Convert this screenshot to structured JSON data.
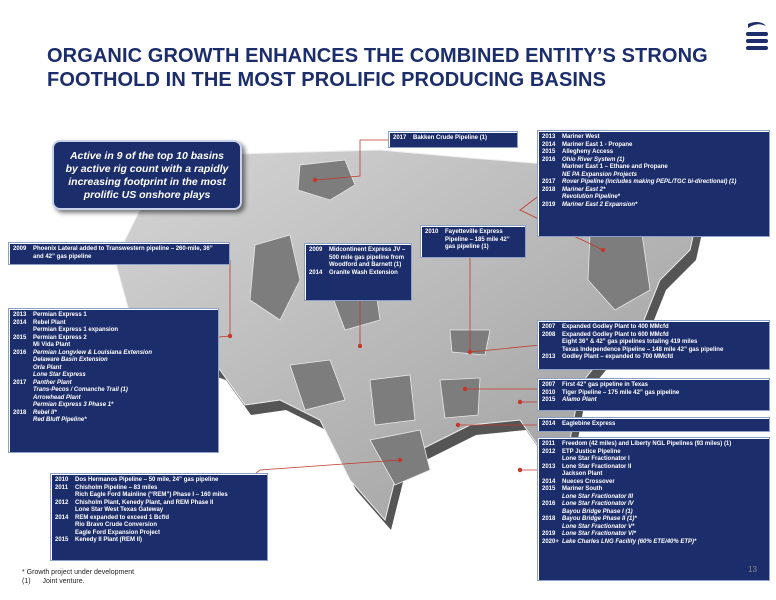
{
  "slide": {
    "title_line1": "ORGANIC GROWTH ENHANCES THE COMBINED ENTITY’S STRONG",
    "title_line2": "FOOTHOLD IN THE MOST PROLIFIC PRODUCING BASINS",
    "callout": "Active in 9 of the top 10 basins by active rig count with a rapidly increasing footprint in the most prolific US onshore plays",
    "footnote1": "* Growth project under development",
    "footnote2_marker": "(1)",
    "footnote2_text": "Joint venture.",
    "page_number": "13"
  },
  "boxes": {
    "bakken": [
      {
        "year": "2017",
        "text": "Bakken Crude Pipeline (1)",
        "italic": false
      }
    ],
    "mariner": [
      {
        "year": "2013",
        "text": "Mariner West",
        "italic": false
      },
      {
        "year": "2014",
        "text": "Mariner East 1 - Propane",
        "italic": false
      },
      {
        "year": "2015",
        "text": "Allegheny Access",
        "italic": false
      },
      {
        "year": "2016",
        "text": "Ohio River System (1)",
        "italic": true
      },
      {
        "year": "",
        "text": "Mariner East 1 – Ethane and Propane",
        "italic": false
      },
      {
        "year": "",
        "text": "NE PA Expansion Projects",
        "italic": true
      },
      {
        "year": "2017",
        "text": "Rover Pipeline (includes making PEPL/TGC bi-directional) (1)",
        "italic": true
      },
      {
        "year": "2018",
        "text": "Mariner East 2*",
        "italic": true
      },
      {
        "year": "",
        "text": "Revolution Pipeline*",
        "italic": true
      },
      {
        "year": "2019",
        "text": "Mariner East 2 Expansion*",
        "italic": true
      }
    ],
    "phoenix": [
      {
        "year": "2009",
        "text": "Phoenix Lateral added to Transwestern pipeline – 260-mile, 36” and 42” gas pipeline",
        "italic": false
      }
    ],
    "midcontinent": [
      {
        "year": "2009",
        "text": "Midcontinent Express JV – 500 mile gas pipeline from Woodford and Barnett (1)",
        "italic": false
      },
      {
        "year": "2014",
        "text": "Granite Wash Extension",
        "italic": false
      }
    ],
    "fayetteville": [
      {
        "year": "2010",
        "text": "Fayetteville Express Pipeline – 185 mile 42” gas pipeline (1)",
        "italic": false
      }
    ],
    "permian": [
      {
        "year": "2013",
        "text": "Permian Express 1",
        "italic": false
      },
      {
        "year": "2014",
        "text": "Rebel Plant",
        "italic": false
      },
      {
        "year": "",
        "text": "Permian Express 1 expansion",
        "italic": false
      },
      {
        "year": "2015",
        "text": "Permian Express 2",
        "italic": false
      },
      {
        "year": "",
        "text": "Mi Vida Plant",
        "italic": false
      },
      {
        "year": "2016",
        "text": "Permian Longview & Louisiana Extension",
        "italic": true
      },
      {
        "year": "",
        "text": "Delaware Basin Extension",
        "italic": true
      },
      {
        "year": "",
        "text": "Orla Plant",
        "italic": true
      },
      {
        "year": "",
        "text": "Lone Star Express",
        "italic": true
      },
      {
        "year": "2017",
        "text": "Panther Plant",
        "italic": true
      },
      {
        "year": "",
        "text": "Trans-Pecos / Comanche Trail (1)",
        "italic": true
      },
      {
        "year": "",
        "text": "Arrowhead Plant",
        "italic": true
      },
      {
        "year": "",
        "text": "Permian Express 3 Phase 1*",
        "italic": true
      },
      {
        "year": "2018",
        "text": "Rebel II*",
        "italic": true
      },
      {
        "year": "",
        "text": "Red Bluff Pipeline*",
        "italic": true
      }
    ],
    "godley": [
      {
        "year": "2007",
        "text": "Expanded Godley Plant to 400 MMcfd",
        "italic": false
      },
      {
        "year": "2008",
        "text": "Expanded Godley Plant to 600 MMcfd",
        "italic": false
      },
      {
        "year": "",
        "text": "Eight 36” & 42” gas pipelines totaling 419 miles",
        "italic": false
      },
      {
        "year": "",
        "text": "Texas Independence Pipeline – 148 mile 42” gas pipeline",
        "italic": false
      },
      {
        "year": "2013",
        "text": "Godley Plant – expanded to 700 MMcfd",
        "italic": false
      }
    ],
    "texas42": [
      {
        "year": "2007",
        "text": "First 42” gas pipeline in Texas",
        "italic": false
      },
      {
        "year": "2010",
        "text": "Tiger Pipeline – 175 mile 42” gas pipeline",
        "italic": false
      },
      {
        "year": "2015",
        "text": "Alamo Plant",
        "italic": true
      }
    ],
    "eaglebine": [
      {
        "year": "2014",
        "text": "Eaglebine Express",
        "italic": false
      }
    ],
    "eagleford": [
      {
        "year": "2010",
        "text": "Dos Hermanos Pipeline – 50 mile, 24” gas pipeline",
        "italic": false
      },
      {
        "year": "2011",
        "text": "Chisholm Pipeline – 83 miles",
        "italic": false
      },
      {
        "year": "",
        "text": "Rich Eagle Ford Mainline (“REM”) Phase I – 160 miles",
        "italic": false
      },
      {
        "year": "2012",
        "text": "Chisholm Plant, Kenedy Plant, and REM Phase II",
        "italic": false
      },
      {
        "year": "",
        "text": "Lone Star West Texas Gateway",
        "italic": false
      },
      {
        "year": "2014",
        "text": "REM expanded to exceed 1 Bcf/d",
        "italic": false
      },
      {
        "year": "",
        "text": "Rio Bravo Crude Conversion",
        "italic": false
      },
      {
        "year": "",
        "text": "Eagle Ford Expansion Project",
        "italic": false
      },
      {
        "year": "2015",
        "text": "Kenedy II Plant (REM II)",
        "italic": false
      }
    ],
    "gulf": [
      {
        "year": "2011",
        "text": "Freedom (42 miles) and Liberty NGL Pipelines (93 miles) (1)",
        "italic": false
      },
      {
        "year": "2012",
        "text": "ETP Justice Pipeline",
        "italic": false
      },
      {
        "year": "",
        "text": "Lone Star Fractionator I",
        "italic": false
      },
      {
        "year": "2013",
        "text": "Lone Star Fractionator II",
        "italic": false
      },
      {
        "year": "",
        "text": "Jackson Plant",
        "italic": false
      },
      {
        "year": "2014",
        "text": "Nueces Crossover",
        "italic": false
      },
      {
        "year": "2015",
        "text": "Mariner South",
        "italic": false
      },
      {
        "year": "",
        "text": "Lone Star Fractionator III",
        "italic": true
      },
      {
        "year": "2016",
        "text": "Lone Star Fractionator IV",
        "italic": true
      },
      {
        "year": "",
        "text": "Bayou Bridge Phase I (1)",
        "italic": true
      },
      {
        "year": "2018",
        "text": "Bayou Bridge Phase II (1)*",
        "italic": true
      },
      {
        "year": "",
        "text": "Lone Star Fractionator V*",
        "italic": true
      },
      {
        "year": "2019",
        "text": "Lone Star Fractionator VI*",
        "italic": true
      },
      {
        "year": "2020+",
        "text": "Lake Charles LNG Facility (60% ETE/40% ETP)*",
        "italic": true
      }
    ]
  },
  "colors": {
    "navy": "#1c2d6b",
    "title": "#1b2d6b",
    "leader": "#c0392b",
    "map": "#b9b9b9"
  }
}
